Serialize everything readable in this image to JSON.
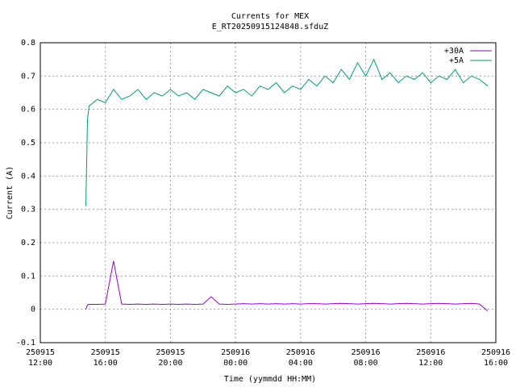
{
  "chart_data": {
    "type": "line",
    "title": "Currents for MEX",
    "subtitle": "E_RT20250915124848.sfduZ",
    "x_label": "Time (yymmdd HH:MM)",
    "y_label": "Current (A)",
    "x": [
      14.8,
      14.9,
      15,
      15.5,
      16,
      16.5,
      17,
      17.5,
      18,
      18.5,
      19,
      19.5,
      20,
      20.5,
      21,
      21.5,
      22,
      22.5,
      23,
      23.5,
      24,
      24.5,
      25,
      25.5,
      26,
      26.5,
      27,
      27.5,
      28,
      28.5,
      29,
      29.5,
      30,
      30.5,
      31,
      31.5,
      32,
      32.5,
      33,
      33.5,
      34,
      34.5,
      35,
      35.5,
      36,
      36.5,
      37,
      37.5,
      38,
      38.5,
      39,
      39.5
    ],
    "series": [
      {
        "name": "+30A",
        "color": "#9400d3",
        "values": [
          0,
          0.013,
          0.015,
          0.015,
          0.016,
          0.145,
          0.016,
          0.015,
          0.016,
          0.015,
          0.016,
          0.015,
          0.016,
          0.015,
          0.016,
          0.015,
          0.016,
          0.038,
          0.016,
          0.015,
          0.016,
          0.017,
          0.016,
          0.017,
          0.016,
          0.017,
          0.016,
          0.017,
          0.016,
          0.017,
          0.017,
          0.016,
          0.017,
          0.018,
          0.017,
          0.016,
          0.017,
          0.018,
          0.017,
          0.016,
          0.017,
          0.018,
          0.017,
          0.016,
          0.017,
          0.018,
          0.017,
          0.016,
          0.017,
          0.018,
          0.016,
          -0.005
        ]
      },
      {
        "name": "+5A",
        "color": "#009e73",
        "values": [
          0.31,
          0.57,
          0.61,
          0.63,
          0.62,
          0.66,
          0.63,
          0.64,
          0.66,
          0.63,
          0.65,
          0.64,
          0.66,
          0.64,
          0.65,
          0.63,
          0.66,
          0.65,
          0.64,
          0.67,
          0.65,
          0.66,
          0.64,
          0.67,
          0.66,
          0.68,
          0.65,
          0.67,
          0.66,
          0.69,
          0.67,
          0.7,
          0.68,
          0.72,
          0.69,
          0.74,
          0.7,
          0.75,
          0.69,
          0.71,
          0.68,
          0.7,
          0.69,
          0.71,
          0.68,
          0.7,
          0.69,
          0.72,
          0.68,
          0.7,
          0.69,
          0.67
        ]
      }
    ],
    "xlim": [
      12,
      40
    ],
    "xticks": [
      {
        "value": 12,
        "label": "250915\n12:00"
      },
      {
        "value": 16,
        "label": "250915\n16:00"
      },
      {
        "value": 20,
        "label": "250915\n20:00"
      },
      {
        "value": 24,
        "label": "250916\n00:00"
      },
      {
        "value": 28,
        "label": "250916\n04:00"
      },
      {
        "value": 32,
        "label": "250916\n08:00"
      },
      {
        "value": 36,
        "label": "250916\n12:00"
      },
      {
        "value": 40,
        "label": "250916\n16:00"
      }
    ],
    "ylim": [
      -0.1,
      0.8
    ],
    "yticks": [
      -0.1,
      0,
      0.1,
      0.2,
      0.3,
      0.4,
      0.5,
      0.6,
      0.7,
      0.8
    ],
    "grid": true,
    "legend": "top-right"
  }
}
